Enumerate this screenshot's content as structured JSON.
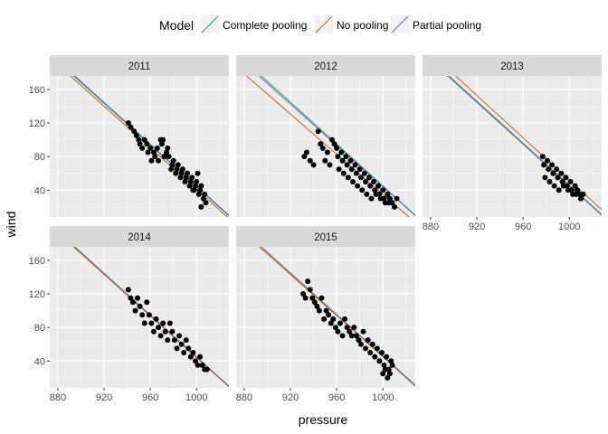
{
  "chart_data": {
    "type": "scatter",
    "xlabel": "pressure",
    "ylabel": "wind",
    "xlim": [
      873,
      1028
    ],
    "ylim": [
      8,
      176
    ],
    "x_ticks": [
      880,
      920,
      960,
      1000
    ],
    "y_ticks": [
      40,
      80,
      120,
      160
    ],
    "grid": true,
    "legend": {
      "title": "Model",
      "position": "top",
      "entries": [
        {
          "name": "Complete pooling",
          "color": "#1b9e77"
        },
        {
          "name": "No pooling",
          "color": "#d95f02"
        },
        {
          "name": "Partial pooling",
          "color": "#7570b3"
        }
      ]
    },
    "facets": [
      {
        "label": "2011",
        "lines": [
          {
            "model": "Complete pooling",
            "intercept": 1290,
            "slope": -1.245
          },
          {
            "model": "No pooling",
            "intercept": 1279,
            "slope": -1.238
          },
          {
            "model": "Partial pooling",
            "intercept": 1286,
            "slope": -1.242
          }
        ],
        "points": [
          [
            941,
            120
          ],
          [
            943,
            115
          ],
          [
            946,
            110
          ],
          [
            948,
            105
          ],
          [
            950,
            100
          ],
          [
            951,
            95
          ],
          [
            953,
            90
          ],
          [
            955,
            100
          ],
          [
            957,
            95
          ],
          [
            958,
            85
          ],
          [
            960,
            90
          ],
          [
            961,
            75
          ],
          [
            963,
            85
          ],
          [
            964,
            80
          ],
          [
            966,
            90
          ],
          [
            967,
            75
          ],
          [
            969,
            100
          ],
          [
            970,
            95
          ],
          [
            971,
            100
          ],
          [
            972,
            80
          ],
          [
            974,
            85
          ],
          [
            975,
            90
          ],
          [
            976,
            80
          ],
          [
            978,
            65
          ],
          [
            979,
            70
          ],
          [
            980,
            75
          ],
          [
            982,
            60
          ],
          [
            983,
            65
          ],
          [
            984,
            70
          ],
          [
            986,
            55
          ],
          [
            987,
            60
          ],
          [
            988,
            65
          ],
          [
            990,
            50
          ],
          [
            991,
            55
          ],
          [
            992,
            60
          ],
          [
            994,
            45
          ],
          [
            995,
            50
          ],
          [
            996,
            55
          ],
          [
            998,
            40
          ],
          [
            999,
            45
          ],
          [
            1000,
            50
          ],
          [
            1002,
            35
          ],
          [
            1003,
            40
          ],
          [
            1004,
            45
          ],
          [
            1006,
            30
          ],
          [
            1007,
            35
          ],
          [
            1008,
            25
          ],
          [
            1004,
            20
          ],
          [
            1001,
            60
          ],
          [
            997,
            40
          ]
        ]
      },
      {
        "label": "2012",
        "lines": [
          {
            "model": "Complete pooling",
            "intercept": 1290,
            "slope": -1.245
          },
          {
            "model": "No pooling",
            "intercept": 1230,
            "slope": -1.195
          },
          {
            "model": "Partial pooling",
            "intercept": 1274,
            "slope": -1.23
          }
        ],
        "points": [
          [
            932,
            80
          ],
          [
            934,
            85
          ],
          [
            937,
            75
          ],
          [
            940,
            70
          ],
          [
            944,
            110
          ],
          [
            946,
            95
          ],
          [
            948,
            90
          ],
          [
            950,
            75
          ],
          [
            952,
            85
          ],
          [
            954,
            70
          ],
          [
            956,
            100
          ],
          [
            958,
            95
          ],
          [
            960,
            90
          ],
          [
            961,
            80
          ],
          [
            962,
            65
          ],
          [
            964,
            85
          ],
          [
            965,
            75
          ],
          [
            966,
            60
          ],
          [
            968,
            80
          ],
          [
            969,
            70
          ],
          [
            970,
            55
          ],
          [
            972,
            75
          ],
          [
            973,
            65
          ],
          [
            974,
            50
          ],
          [
            976,
            70
          ],
          [
            977,
            60
          ],
          [
            978,
            45
          ],
          [
            980,
            65
          ],
          [
            981,
            55
          ],
          [
            982,
            40
          ],
          [
            984,
            60
          ],
          [
            985,
            50
          ],
          [
            986,
            35
          ],
          [
            988,
            55
          ],
          [
            989,
            45
          ],
          [
            990,
            30
          ],
          [
            992,
            50
          ],
          [
            993,
            40
          ],
          [
            994,
            35
          ],
          [
            996,
            45
          ],
          [
            997,
            35
          ],
          [
            998,
            30
          ],
          [
            1000,
            40
          ],
          [
            1001,
            30
          ],
          [
            1002,
            25
          ],
          [
            1004,
            35
          ],
          [
            1005,
            25
          ],
          [
            1006,
            30
          ],
          [
            1008,
            25
          ],
          [
            1010,
            20
          ],
          [
            1012,
            30
          ]
        ]
      },
      {
        "label": "2013",
        "lines": [
          {
            "model": "Complete pooling",
            "intercept": 1290,
            "slope": -1.245
          },
          {
            "model": "No pooling",
            "intercept": 1312,
            "slope": -1.26
          },
          {
            "model": "Partial pooling",
            "intercept": 1296,
            "slope": -1.25
          }
        ],
        "points": [
          [
            977,
            80
          ],
          [
            978,
            70
          ],
          [
            979,
            55
          ],
          [
            981,
            75
          ],
          [
            982,
            65
          ],
          [
            983,
            50
          ],
          [
            985,
            70
          ],
          [
            986,
            60
          ],
          [
            987,
            45
          ],
          [
            989,
            65
          ],
          [
            990,
            55
          ],
          [
            991,
            40
          ],
          [
            993,
            60
          ],
          [
            994,
            50
          ],
          [
            995,
            45
          ],
          [
            997,
            55
          ],
          [
            998,
            45
          ],
          [
            999,
            40
          ],
          [
            1001,
            50
          ],
          [
            1002,
            40
          ],
          [
            1003,
            35
          ],
          [
            1005,
            45
          ],
          [
            1006,
            35
          ],
          [
            1007,
            40
          ],
          [
            1009,
            35
          ],
          [
            1010,
            30
          ],
          [
            1012,
            35
          ]
        ]
      },
      {
        "label": "2014",
        "lines": [
          {
            "model": "Complete pooling",
            "intercept": 1290,
            "slope": -1.245
          },
          {
            "model": "No pooling",
            "intercept": 1284,
            "slope": -1.24
          },
          {
            "model": "Partial pooling",
            "intercept": 1288,
            "slope": -1.243
          }
        ],
        "points": [
          [
            941,
            125
          ],
          [
            943,
            115
          ],
          [
            945,
            110
          ],
          [
            947,
            100
          ],
          [
            949,
            115
          ],
          [
            951,
            105
          ],
          [
            953,
            95
          ],
          [
            955,
            85
          ],
          [
            957,
            110
          ],
          [
            959,
            95
          ],
          [
            961,
            85
          ],
          [
            963,
            75
          ],
          [
            965,
            90
          ],
          [
            967,
            80
          ],
          [
            969,
            70
          ],
          [
            971,
            85
          ],
          [
            973,
            75
          ],
          [
            975,
            65
          ],
          [
            977,
            85
          ],
          [
            979,
            75
          ],
          [
            981,
            65
          ],
          [
            983,
            55
          ],
          [
            985,
            70
          ],
          [
            987,
            60
          ],
          [
            989,
            50
          ],
          [
            991,
            65
          ],
          [
            993,
            55
          ],
          [
            995,
            45
          ],
          [
            997,
            50
          ],
          [
            999,
            40
          ],
          [
            1001,
            35
          ],
          [
            1003,
            45
          ],
          [
            1005,
            35
          ],
          [
            1007,
            30
          ],
          [
            1009,
            30
          ]
        ]
      },
      {
        "label": "2015",
        "lines": [
          {
            "model": "Complete pooling",
            "intercept": 1290,
            "slope": -1.245
          },
          {
            "model": "No pooling",
            "intercept": 1270,
            "slope": -1.225
          },
          {
            "model": "Partial pooling",
            "intercept": 1282,
            "slope": -1.236
          }
        ],
        "points": [
          [
            931,
            120
          ],
          [
            933,
            115
          ],
          [
            935,
            135
          ],
          [
            937,
            125
          ],
          [
            939,
            115
          ],
          [
            941,
            110
          ],
          [
            943,
            105
          ],
          [
            945,
            100
          ],
          [
            947,
            115
          ],
          [
            949,
            90
          ],
          [
            951,
            100
          ],
          [
            953,
            95
          ],
          [
            955,
            85
          ],
          [
            957,
            90
          ],
          [
            959,
            80
          ],
          [
            961,
            75
          ],
          [
            963,
            85
          ],
          [
            965,
            70
          ],
          [
            967,
            90
          ],
          [
            969,
            80
          ],
          [
            971,
            75
          ],
          [
            973,
            70
          ],
          [
            975,
            80
          ],
          [
            977,
            70
          ],
          [
            979,
            65
          ],
          [
            981,
            60
          ],
          [
            983,
            75
          ],
          [
            985,
            55
          ],
          [
            987,
            65
          ],
          [
            989,
            50
          ],
          [
            991,
            60
          ],
          [
            993,
            45
          ],
          [
            995,
            55
          ],
          [
            997,
            40
          ],
          [
            999,
            50
          ],
          [
            1001,
            35
          ],
          [
            1003,
            45
          ],
          [
            1005,
            30
          ],
          [
            1006,
            25
          ],
          [
            1007,
            40
          ],
          [
            1008,
            35
          ],
          [
            1004,
            20
          ],
          [
            1002,
            30
          ],
          [
            1000,
            25
          ]
        ]
      }
    ]
  }
}
